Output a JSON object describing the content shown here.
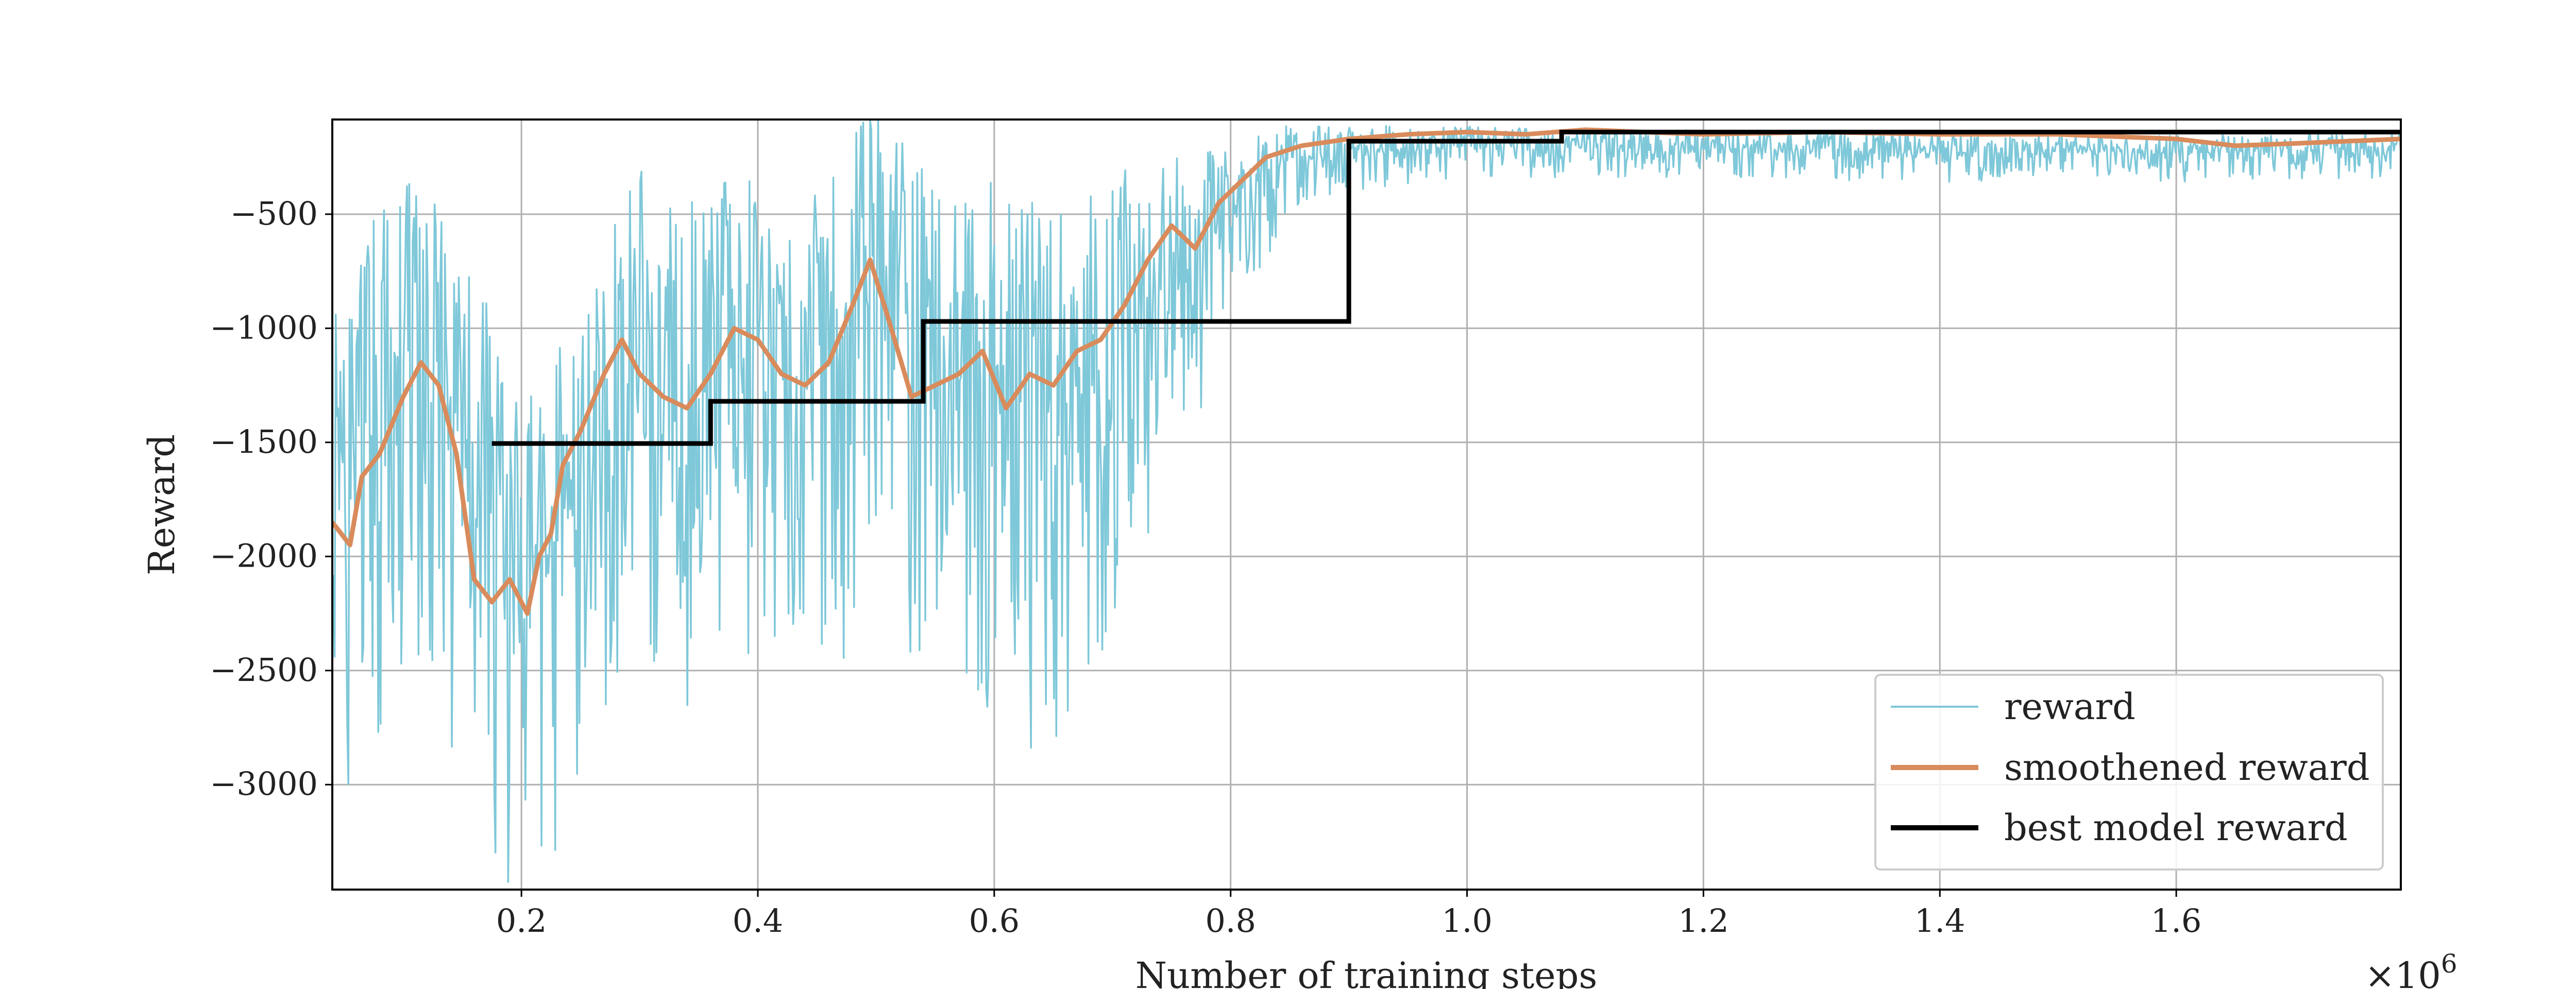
{
  "chart_data": {
    "type": "line",
    "title": "",
    "xlabel": "Number of training steps",
    "ylabel": "Reward",
    "x_multiplier_label": "×10",
    "x_multiplier_exp": "6",
    "xlim": [
      0.04,
      1.79
    ],
    "ylim": [
      -3460,
      -85
    ],
    "x_ticks": [
      0.2,
      0.4,
      0.6,
      0.8,
      1.0,
      1.2,
      1.4,
      1.6
    ],
    "x_tick_labels": [
      "0.2",
      "0.4",
      "0.6",
      "0.8",
      "1.0",
      "1.2",
      "1.4",
      "1.6"
    ],
    "y_ticks": [
      -500,
      -1000,
      -1500,
      -2000,
      -2500,
      -3000
    ],
    "y_tick_labels": [
      "−500",
      "−1000",
      "−1500",
      "−2000",
      "−2500",
      "−3000"
    ],
    "grid": true,
    "legend_position": "bottom-right",
    "colors": {
      "reward": "#7ec8d9",
      "smoothened": "#d98b5c",
      "best": "#000000"
    },
    "series": [
      {
        "name": "reward",
        "style": "noisy",
        "x": [
          0.04,
          0.08,
          0.12,
          0.16,
          0.2,
          0.25,
          0.3,
          0.35,
          0.4,
          0.45,
          0.5,
          0.55,
          0.6,
          0.65,
          0.7,
          0.75,
          0.8,
          0.85,
          0.9,
          1.0,
          1.2,
          1.4,
          1.6,
          1.79
        ],
        "center": [
          -1800,
          -1350,
          -1200,
          -1600,
          -2200,
          -1700,
          -1100,
          -1300,
          -1050,
          -1250,
          -800,
          -1200,
          -1250,
          -1400,
          -1100,
          -800,
          -500,
          -250,
          -220,
          -200,
          -210,
          -230,
          -230,
          -210
        ],
        "spread": [
          1400,
          1500,
          1500,
          1500,
          1400,
          1400,
          1400,
          1400,
          1400,
          1400,
          1400,
          1400,
          1500,
          1500,
          1300,
          900,
          500,
          250,
          180,
          140,
          130,
          130,
          130,
          130
        ]
      },
      {
        "name": "smoothened reward",
        "x": [
          0.04,
          0.055,
          0.065,
          0.08,
          0.1,
          0.115,
          0.13,
          0.145,
          0.16,
          0.175,
          0.19,
          0.205,
          0.215,
          0.225,
          0.235,
          0.25,
          0.27,
          0.285,
          0.3,
          0.32,
          0.34,
          0.36,
          0.38,
          0.4,
          0.42,
          0.44,
          0.46,
          0.48,
          0.495,
          0.51,
          0.53,
          0.55,
          0.57,
          0.59,
          0.61,
          0.63,
          0.65,
          0.67,
          0.69,
          0.71,
          0.73,
          0.75,
          0.77,
          0.79,
          0.81,
          0.83,
          0.86,
          0.9,
          0.95,
          1.0,
          1.05,
          1.1,
          1.15,
          1.2,
          1.3,
          1.4,
          1.5,
          1.6,
          1.65,
          1.7,
          1.79
        ],
        "y": [
          -1850,
          -1950,
          -1650,
          -1550,
          -1300,
          -1150,
          -1250,
          -1550,
          -2100,
          -2200,
          -2100,
          -2250,
          -2000,
          -1900,
          -1600,
          -1450,
          -1200,
          -1050,
          -1200,
          -1300,
          -1350,
          -1200,
          -1000,
          -1050,
          -1200,
          -1250,
          -1150,
          -900,
          -700,
          -950,
          -1300,
          -1250,
          -1200,
          -1100,
          -1350,
          -1200,
          -1250,
          -1100,
          -1050,
          -900,
          -700,
          -550,
          -650,
          -450,
          -350,
          -250,
          -200,
          -170,
          -150,
          -140,
          -150,
          -130,
          -140,
          -150,
          -140,
          -150,
          -150,
          -170,
          -200,
          -190,
          -170
        ]
      },
      {
        "name": "best model reward",
        "x": [
          0.175,
          0.36,
          0.36,
          0.54,
          0.54,
          0.9,
          0.9,
          1.08,
          1.08,
          1.79
        ],
        "y": [
          -1505,
          -1505,
          -1320,
          -1320,
          -970,
          -970,
          -180,
          -180,
          -140,
          -140
        ]
      }
    ]
  }
}
